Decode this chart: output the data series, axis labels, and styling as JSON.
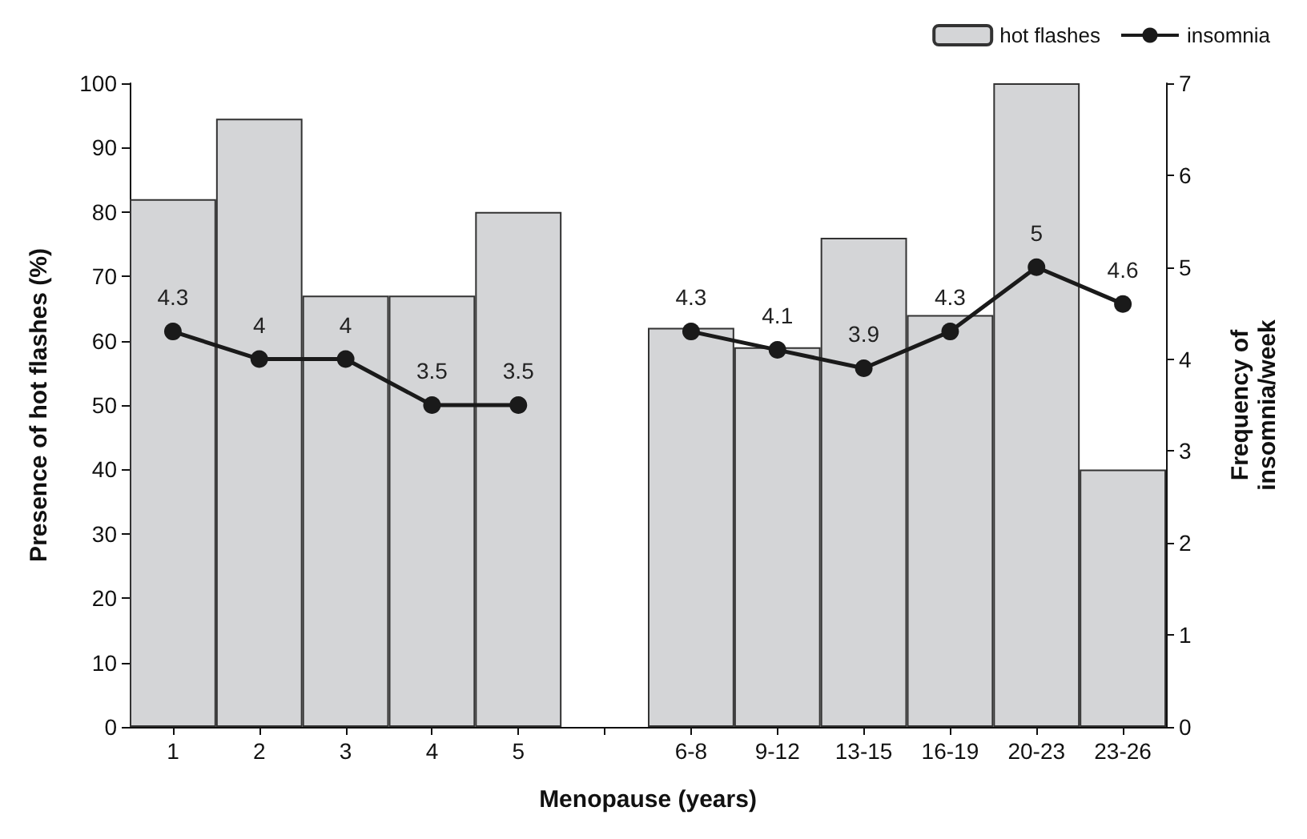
{
  "chart_data": {
    "type": "bar",
    "xlabel": "Menopause (years)",
    "ylabel": "Presence of hot flashes (%)",
    "y2label": "Frequency of\ninsomnia/week",
    "categories": [
      "1",
      "2",
      "3",
      "4",
      "5",
      null,
      "6-8",
      "9-12",
      "13-15",
      "16-19",
      "20-23",
      "23-26"
    ],
    "series": [
      {
        "name": "hot flashes",
        "color": "#d4d5d7",
        "values": [
          82,
          94.5,
          67,
          67,
          80,
          null,
          62,
          59,
          76,
          64,
          100,
          40
        ]
      },
      {
        "name": "insomnia",
        "type": "line",
        "axis": "y2",
        "color": "#1a1a1a",
        "marker": "circle",
        "values": [
          4.3,
          4,
          4,
          3.5,
          3.5,
          null,
          4.3,
          4.1,
          3.9,
          4.3,
          5,
          4.6
        ],
        "value_labels": [
          "4.3",
          "4",
          "4",
          "3.5",
          "3.5",
          null,
          "4.3",
          "4.1",
          "3.9",
          "4.3",
          "5",
          "4.6"
        ]
      }
    ],
    "ylim": [
      0,
      100
    ],
    "yticks": [
      0,
      10,
      20,
      30,
      40,
      50,
      60,
      70,
      80,
      90,
      100
    ],
    "y2lim": [
      0,
      7
    ],
    "y2ticks": [
      0,
      1,
      2,
      3,
      4,
      5,
      6,
      7
    ],
    "grid": false,
    "legend": "top right"
  }
}
